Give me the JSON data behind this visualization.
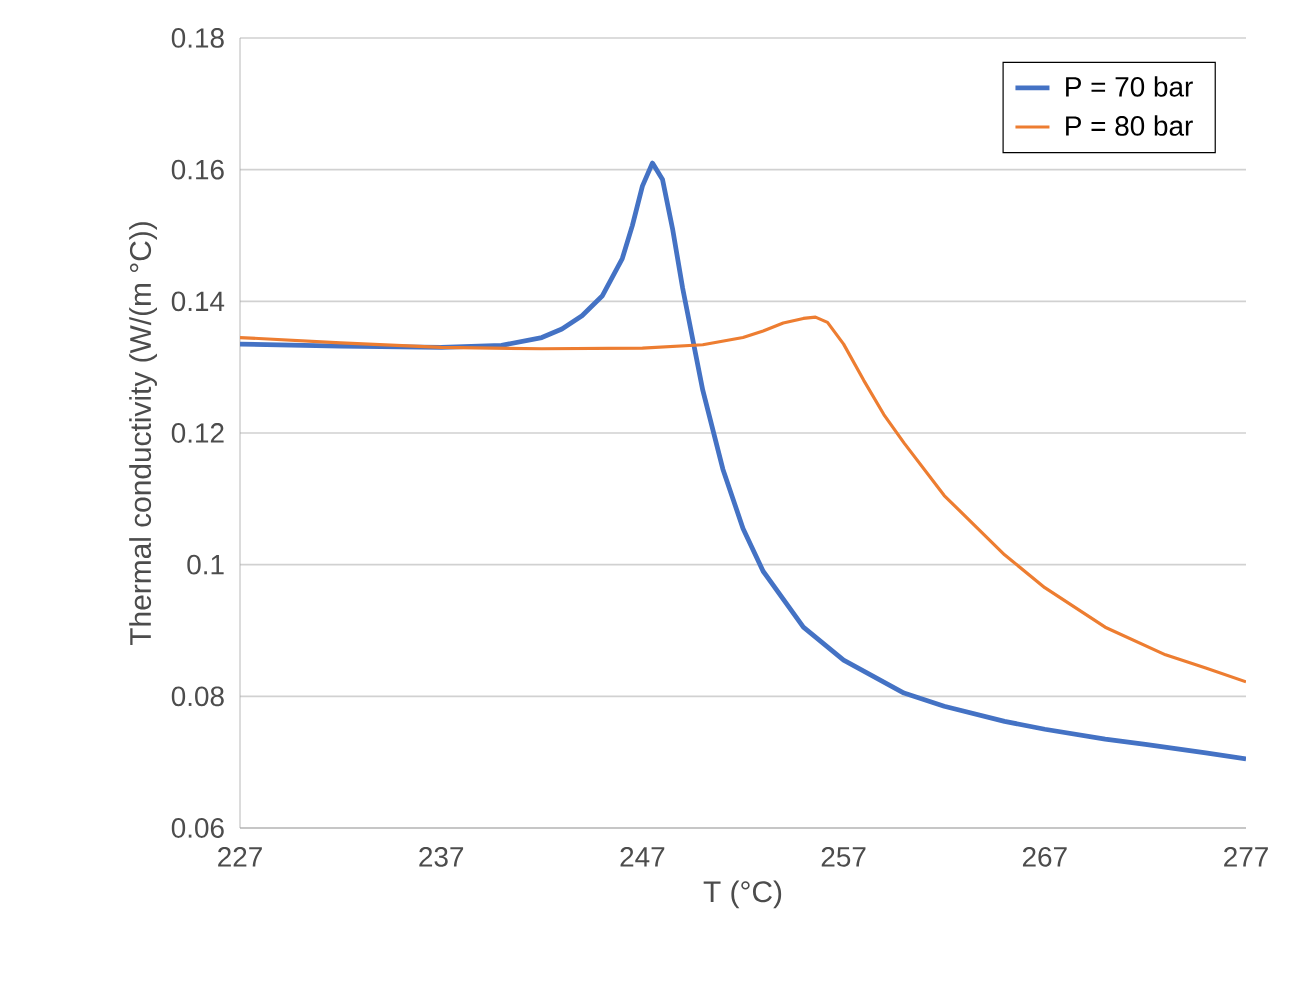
{
  "chart_data": {
    "type": "line",
    "xlabel": "T (°C)",
    "ylabel": "Thermal conductivity (W/(m °C))",
    "xlim": [
      227,
      277
    ],
    "xticks": [
      227,
      237,
      247,
      257,
      267,
      277
    ],
    "ylim": [
      0.06,
      0.18
    ],
    "yticks": [
      0.06,
      0.08,
      0.1,
      0.12,
      0.14,
      0.16,
      0.18
    ],
    "grid": "y",
    "legend": "top right",
    "marker": "none",
    "line_style": "solid",
    "series": [
      {
        "name": "P = 70 bar",
        "color": "#4472c4",
        "x": [
          227,
          232,
          237,
          240,
          242,
          243,
          244,
          245,
          246,
          246.5,
          247,
          247.5,
          248,
          248.5,
          249,
          250,
          251,
          252,
          253,
          255,
          257,
          260,
          262,
          265,
          267,
          270,
          272,
          275,
          277
        ],
        "values": [
          0.1335,
          0.1332,
          0.133,
          0.1333,
          0.1345,
          0.1358,
          0.1378,
          0.1408,
          0.1465,
          0.1515,
          0.1575,
          0.161,
          0.1585,
          0.151,
          0.142,
          0.1265,
          0.1145,
          0.1055,
          0.099,
          0.0905,
          0.0855,
          0.0805,
          0.0785,
          0.0762,
          0.075,
          0.0735,
          0.0727,
          0.0714,
          0.0705
        ]
      },
      {
        "name": "P = 80 bar",
        "color": "#ed7d31",
        "x": [
          227,
          232,
          237,
          242,
          247,
          250,
          252,
          253,
          254,
          255,
          255.6,
          256.2,
          257,
          258,
          259,
          260,
          262,
          265,
          267,
          270,
          273,
          275,
          277
        ],
        "values": [
          0.1345,
          0.1337,
          0.133,
          0.1328,
          0.1329,
          0.1334,
          0.1345,
          0.1355,
          0.1367,
          0.1374,
          0.1376,
          0.1368,
          0.1335,
          0.128,
          0.1228,
          0.1185,
          0.1105,
          0.1015,
          0.0965,
          0.0905,
          0.0863,
          0.0843,
          0.0822
        ]
      }
    ]
  }
}
